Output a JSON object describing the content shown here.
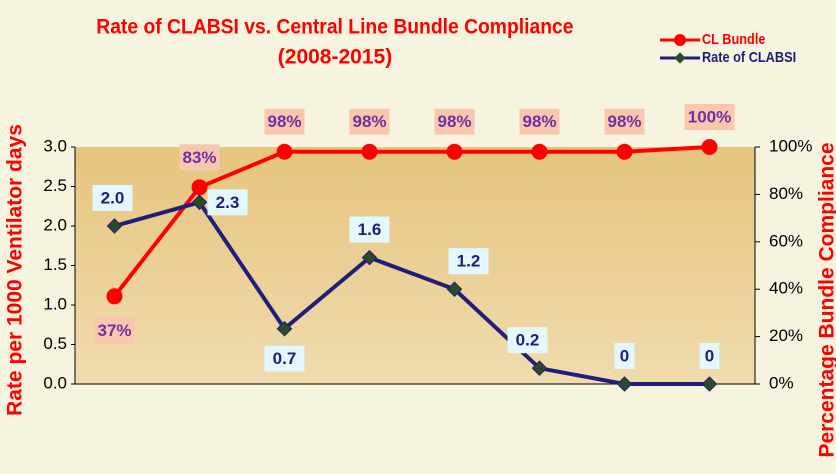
{
  "chart_data": {
    "type": "line",
    "title": "Rate of CLABSI vs. Central Line Bundle Compliance",
    "subtitle": "(2008-2015)",
    "y_label": "Rate per 1000 Ventilator days",
    "y2_label": "Percentage Bundle Compliance",
    "categories": [
      null,
      null,
      null,
      null,
      null,
      null,
      null,
      null
    ],
    "series": [
      {
        "name": "CL Bundle",
        "color": "#ff0000",
        "axis": "y2",
        "values": [
          37,
          83,
          98,
          98,
          98,
          98,
          98,
          100
        ],
        "value_labels": [
          "37%",
          "83%",
          "98%",
          "98%",
          "98%",
          "98%",
          "98%",
          "100%"
        ]
      },
      {
        "name": "Rate of CLABSI",
        "color": "#1f1f7a",
        "values": [
          2.0,
          2.3,
          0.7,
          1.6,
          1.2,
          0.2,
          0,
          0
        ],
        "value_labels": [
          "2.0",
          "2.3",
          "0.7",
          "1.6",
          "1.2",
          "0.2",
          "0",
          "0"
        ]
      }
    ],
    "ylim": [
      0,
      3
    ],
    "yticks": [
      {
        "value": 0,
        "label": "0.0"
      },
      0.5,
      {
        "value": 1,
        "label": "1.0"
      },
      1.5,
      {
        "value": 2,
        "label": "2.0"
      },
      2.5,
      {
        "value": 3,
        "label": "3.0"
      }
    ],
    "y2lim": [
      0,
      100
    ],
    "y2ticks": [
      {
        "value": 0,
        "label": "0%"
      },
      {
        "value": 20,
        "label": "20%"
      },
      {
        "value": 40,
        "label": "40%"
      },
      {
        "value": 60,
        "label": "60%"
      },
      {
        "value": 80,
        "label": "80%"
      },
      {
        "value": 100,
        "label": "100%"
      }
    ],
    "legend": "top-right"
  }
}
